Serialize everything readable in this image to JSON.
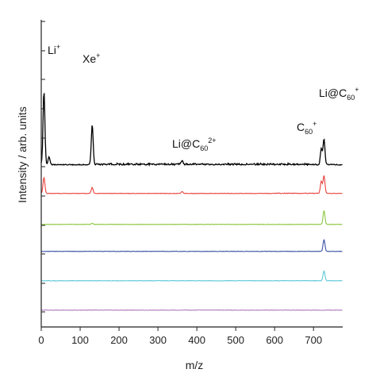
{
  "chart_data": {
    "type": "line",
    "xlabel": "m/z",
    "ylabel": "Intensity / arb. units",
    "xlim": [
      0,
      775
    ],
    "x_ticks": [
      0,
      100,
      200,
      300,
      400,
      500,
      600,
      700
    ],
    "x_tick_labels": [
      "0",
      "100",
      "200",
      "300",
      "400",
      "500",
      "600",
      "700"
    ],
    "grid": false,
    "legend": "none",
    "y_scale": "stacked, offset traces",
    "annotations": [
      {
        "base": "Li",
        "sup": "+",
        "sub": "",
        "x": 5
      },
      {
        "base": "Xe",
        "sup": "+",
        "sub": "",
        "x": 131
      },
      {
        "base": "Li@C",
        "sub": "60",
        "sup": "2+",
        "x": 362
      },
      {
        "base": "C",
        "sub": "60",
        "sup": "+",
        "x": 720
      },
      {
        "base": "Li@C",
        "sub": "60",
        "sup": "+",
        "x": 727
      }
    ],
    "series": [
      {
        "color": "#000000",
        "peaks": [
          {
            "x": 7,
            "h": 1.85
          },
          {
            "x": 20,
            "h": 0.2
          },
          {
            "x": 131,
            "h": 1.0
          },
          {
            "x": 362,
            "h": 0.1
          },
          {
            "x": 720,
            "h": 0.4
          },
          {
            "x": 727,
            "h": 0.65
          }
        ]
      },
      {
        "color": "#e8403a",
        "peaks": [
          {
            "x": 7,
            "h": 0.4
          },
          {
            "x": 131,
            "h": 0.15
          },
          {
            "x": 362,
            "h": 0.05
          },
          {
            "x": 720,
            "h": 0.3
          },
          {
            "x": 727,
            "h": 0.45
          }
        ]
      },
      {
        "color": "#8cc63f",
        "peaks": [
          {
            "x": 131,
            "h": 0.03
          },
          {
            "x": 727,
            "h": 0.35
          }
        ]
      },
      {
        "color": "#3a52a4",
        "peaks": [
          {
            "x": 727,
            "h": 0.3
          }
        ]
      },
      {
        "color": "#5bc8d8",
        "peaks": [
          {
            "x": 727,
            "h": 0.25
          }
        ]
      },
      {
        "color": "#b07bc0",
        "peaks": []
      }
    ]
  }
}
